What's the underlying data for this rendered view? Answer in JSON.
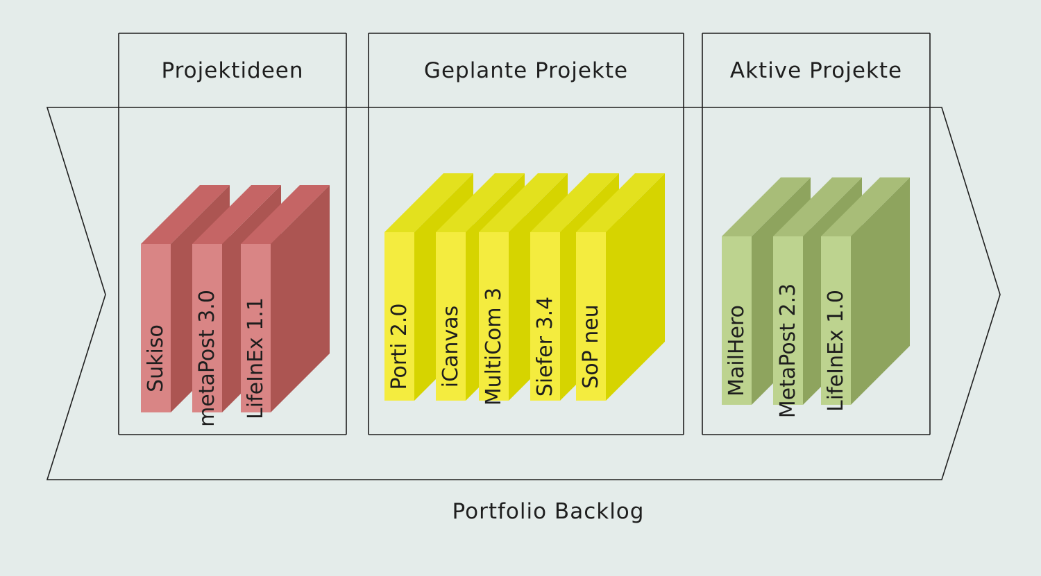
{
  "columns": [
    {
      "title": "Projektideen",
      "items": [
        {
          "label": "Sukiso"
        },
        {
          "label": "metaPost 3.0"
        },
        {
          "label": "LifeInEx 1.1"
        }
      ]
    },
    {
      "title": "Geplante Projekte",
      "items": [
        {
          "label": "Porti 2.0"
        },
        {
          "label": "iCanvas"
        },
        {
          "label": "MultiCom 3"
        },
        {
          "label": "Siefer 3.4"
        },
        {
          "label": "SoP neu"
        }
      ]
    },
    {
      "title": "Aktive Projekte",
      "items": [
        {
          "label": "MailHero"
        },
        {
          "label": "MetaPost 2.3"
        },
        {
          "label": "LifeInEx 1.0"
        }
      ]
    }
  ],
  "footer": "Portfolio Backlog",
  "colors": {
    "background": "#e4ecea",
    "stroke": "#1e1e1e",
    "red": {
      "front": "#d98585",
      "top": "#c56565",
      "side": "#ac5552"
    },
    "yellow": {
      "front": "#f4ec3f",
      "top": "#e3e11e",
      "side": "#d6d400"
    },
    "green": {
      "front": "#bdd38f",
      "top": "#a8bd78",
      "side": "#8ea45e"
    }
  }
}
